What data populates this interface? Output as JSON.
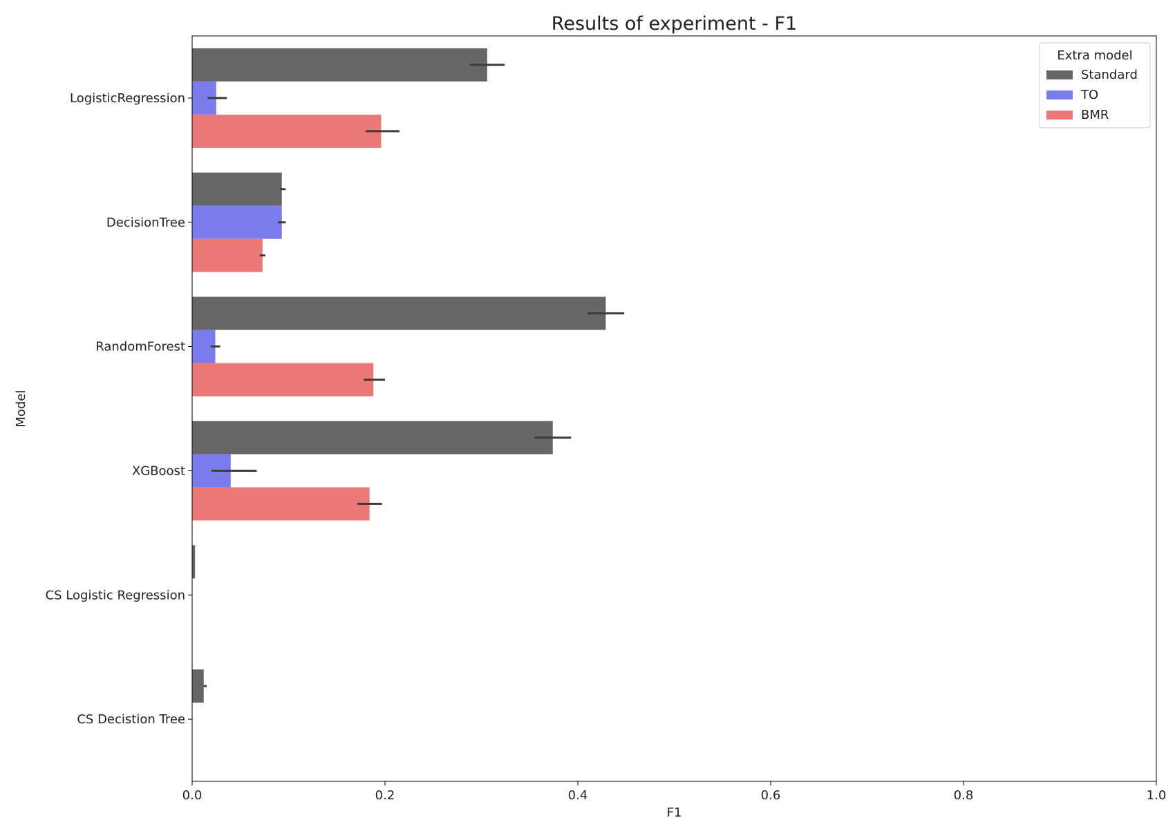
{
  "chart_data": {
    "type": "bar",
    "orientation": "horizontal",
    "title": "Results of experiment - F1",
    "xlabel": "F1",
    "ylabel": "Model",
    "xlim": [
      0,
      1.0
    ],
    "xticks": [
      "0.0",
      "0.2",
      "0.4",
      "0.6",
      "0.8",
      "1.0"
    ],
    "grid": false,
    "categories": [
      "LogisticRegression",
      "DecisionTree",
      "RandomForest",
      "XGBoost",
      "CS Logistic Regression",
      "CS Decistion Tree"
    ],
    "legend": {
      "title": "Extra model",
      "placement": "top-right"
    },
    "series": [
      {
        "name": "Standard",
        "color": "#666666",
        "values": [
          0.306,
          0.093,
          0.429,
          0.374,
          0.003,
          0.012
        ],
        "error_low": [
          0.288,
          0.091,
          0.41,
          0.355,
          null,
          0.012
        ],
        "error_high": [
          0.324,
          0.097,
          0.448,
          0.393,
          null,
          0.015
        ]
      },
      {
        "name": "TO",
        "color": "#7b7bec",
        "values": [
          0.025,
          0.093,
          0.024,
          0.04,
          null,
          null
        ],
        "error_low": [
          0.016,
          0.089,
          0.019,
          0.02,
          null,
          null
        ],
        "error_high": [
          0.036,
          0.097,
          0.029,
          0.067,
          null,
          null
        ]
      },
      {
        "name": "BMR",
        "color": "#ec7979",
        "values": [
          0.196,
          0.073,
          0.188,
          0.184,
          null,
          null
        ],
        "error_low": [
          0.18,
          0.07,
          0.178,
          0.171,
          null,
          null
        ],
        "error_high": [
          0.215,
          0.076,
          0.2,
          0.197,
          null,
          null
        ]
      }
    ]
  }
}
